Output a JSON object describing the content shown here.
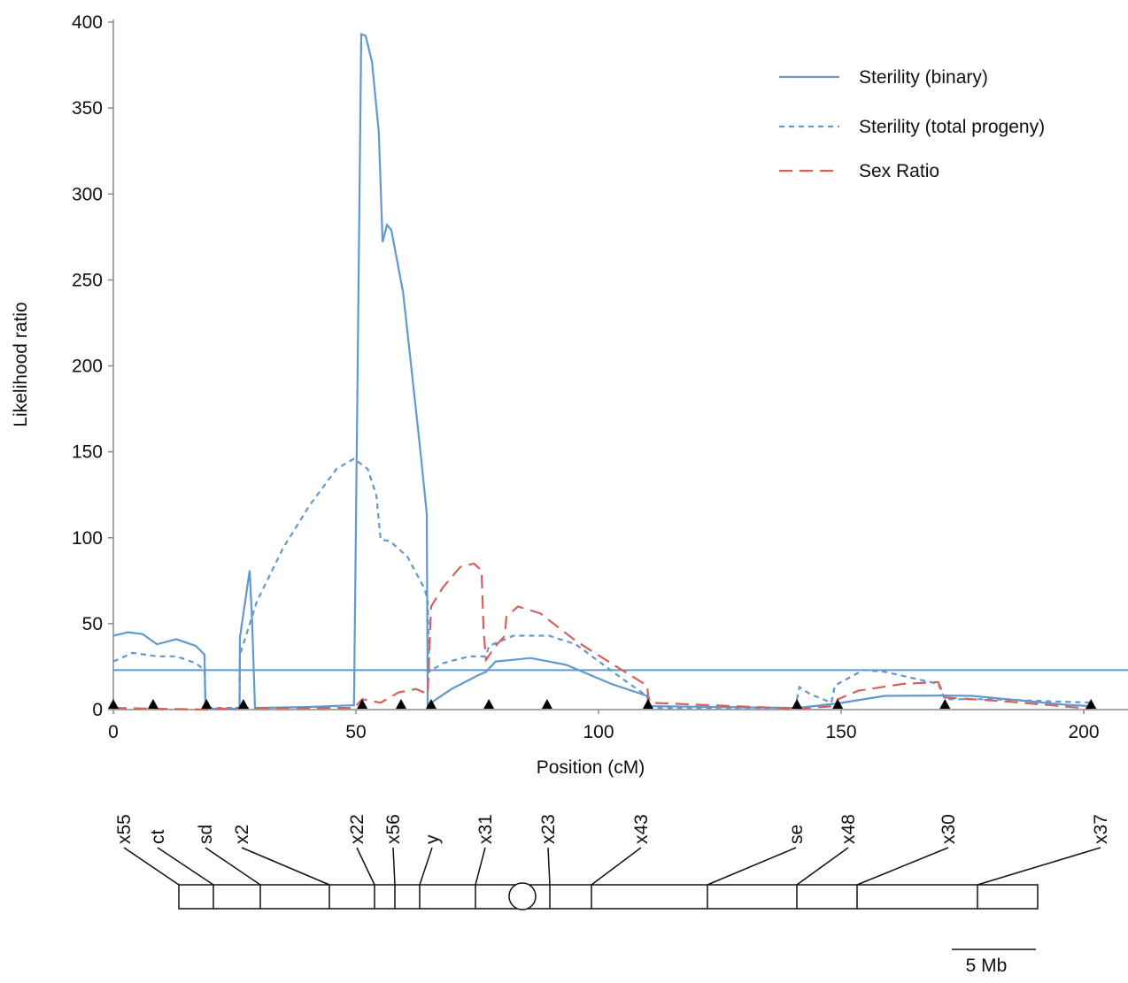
{
  "chart_data": {
    "type": "line",
    "x_label": "Position (cM)",
    "y_label": "Likelihood ratio",
    "xlim": [
      0,
      208
    ],
    "xticks": [
      0,
      50,
      100,
      150,
      200
    ],
    "ylim": [
      0,
      400
    ],
    "yticks": [
      0,
      50,
      100,
      150,
      200,
      250,
      300,
      350,
      400
    ],
    "legend": "upper right",
    "threshold": 23,
    "threshold_color": "#6098cf",
    "marker_positions": [
      0,
      8.2,
      19.2,
      26.8,
      51.3,
      59.3,
      65.5,
      77.4,
      89.4,
      110.2,
      140.9,
      149.3,
      171.4,
      201.5
    ],
    "marker_color": "#000000",
    "series": [
      {
        "name": "Sterility (binary)",
        "color": "#6098cf",
        "style": "solid",
        "x": [
          0,
          3,
          6,
          9,
          13,
          17,
          18.8,
          19,
          26,
          26.1,
          28.1,
          28.6,
          29.2,
          40,
          49.6,
          51.1,
          52,
          53.3,
          54.7,
          55.5,
          56.4,
          57.3,
          59.7,
          61.5,
          63.3,
          64.6,
          64.8,
          65.5,
          69.7,
          75.2,
          76.8,
          78.8,
          82.5,
          86,
          93.4,
          102.6,
          110,
          110.4,
          141,
          149.3,
          159,
          171.4,
          177,
          195.6,
          201.5
        ],
        "values": [
          43,
          45,
          44,
          38,
          41,
          37,
          32,
          0.5,
          0.5,
          42,
          81,
          52,
          1,
          1.5,
          2.5,
          393,
          392,
          377,
          336,
          272,
          282,
          279,
          243,
          197,
          150,
          114,
          2,
          4,
          12,
          20,
          22,
          28,
          29,
          30,
          26,
          15,
          8,
          2,
          1,
          3.6,
          8,
          8.2,
          8,
          3,
          2
        ]
      },
      {
        "name": "Sterility (total progeny)",
        "color": "#6098cf",
        "style": "dotted",
        "x": [
          0,
          4,
          9,
          13,
          17,
          18.8,
          19,
          26,
          26.1,
          29.6,
          35,
          40.5,
          46,
          49.6,
          52.4,
          54.2,
          55.1,
          57,
          60.6,
          64.2,
          64.8,
          65.1,
          67.9,
          73.4,
          76.8,
          77.4,
          82.5,
          89.8,
          95.3,
          104.4,
          110.4,
          110.8,
          140.5,
          141.4,
          143.6,
          148,
          148.7,
          150,
          154.6,
          159,
          170,
          171.4,
          181,
          201.5
        ],
        "values": [
          28,
          33,
          31,
          31,
          27,
          23,
          1,
          1,
          32,
          63,
          94,
          119,
          140,
          146,
          140,
          125,
          99,
          98,
          89,
          70,
          63,
          22,
          27,
          31,
          31,
          37,
          43,
          43,
          38,
          19,
          7,
          1,
          1,
          13,
          9,
          4,
          14,
          16,
          23,
          22,
          15,
          6,
          6,
          4
        ]
      },
      {
        "name": "Sex Ratio",
        "color": "#d2625b",
        "style": "dashed",
        "x": [
          0,
          19,
          26,
          49.6,
          51.3,
          55.1,
          58.8,
          62.4,
          64.8,
          65.5,
          67.9,
          71.5,
          74.3,
          75.9,
          76.3,
          76.8,
          78.8,
          80.7,
          81,
          83.4,
          88,
          95.3,
          102.6,
          110,
          110.4,
          141,
          148.7,
          149.3,
          153.6,
          162.8,
          170,
          171.4,
          183,
          201.5
        ],
        "values": [
          1,
          0,
          1,
          1,
          6,
          4,
          10,
          12,
          9,
          60,
          71,
          83,
          85,
          81,
          47,
          29,
          37,
          43,
          54,
          60,
          56,
          40,
          27,
          14,
          4,
          0.5,
          2,
          6,
          11,
          15,
          16,
          7,
          5,
          0.5
        ]
      }
    ]
  },
  "chromosome_map": {
    "markers": [
      "x55",
      "ct",
      "sd",
      "x2",
      "x22",
      "x56",
      "y",
      "x31",
      "x23",
      "x43",
      "se",
      "x48",
      "x30",
      "x37"
    ],
    "scale_label": "5 Mb"
  }
}
